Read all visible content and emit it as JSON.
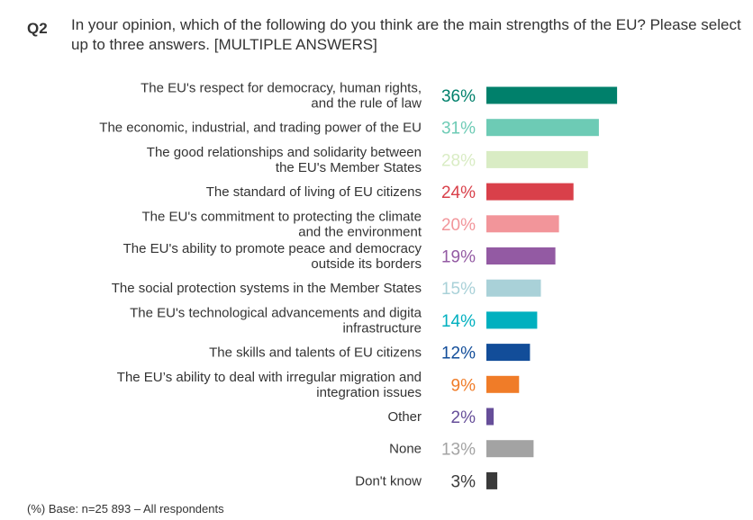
{
  "question": {
    "number": "Q2",
    "text": "In your opinion, which of the following do you think are the main strengths of the EU? Please select up to three answers. [MULTIPLE ANSWERS]"
  },
  "footnote": "(%) Base: n=25 893 – All respondents",
  "chart_data": {
    "type": "bar",
    "orientation": "horizontal",
    "unit": "%",
    "xlim": [
      0,
      100
    ],
    "grid": false,
    "categories": [
      [
        "The EU's respect for democracy, human rights,",
        "and the rule of law"
      ],
      [
        "The economic, industrial, and trading power of the EU"
      ],
      [
        "The good relationships and solidarity between",
        "the EU's Member States"
      ],
      [
        "The standard of living of EU citizens"
      ],
      [
        "The EU's commitment to protecting the climate",
        "and the environment"
      ],
      [
        "The EU's ability to promote peace and democracy",
        "outside its borders"
      ],
      [
        "The social protection systems in the Member States"
      ],
      [
        "The EU's technological advancements and digita",
        "infrastructure"
      ],
      [
        "The skills and talents of EU citizens"
      ],
      [
        "The EU’s ability to deal with irregular migration and",
        "integration issues"
      ],
      [
        "Other"
      ],
      [
        "None"
      ],
      [
        "Don't know"
      ]
    ],
    "values": [
      36,
      31,
      28,
      24,
      20,
      19,
      15,
      14,
      12,
      9,
      2,
      13,
      3
    ],
    "value_labels": [
      "36%",
      "31%",
      "28%",
      "24%",
      "20%",
      "19%",
      "15%",
      "14%",
      "12%",
      "9%",
      "2%",
      "13%",
      "3%"
    ],
    "colors": [
      "#00806b",
      "#6dcbb5",
      "#d9ecc4",
      "#d9404a",
      "#f2959a",
      "#935aa3",
      "#a9d1d8",
      "#00b0bf",
      "#124d99",
      "#f07c28",
      "#664e99",
      "#a3a3a3",
      "#3a3a3a"
    ]
  }
}
